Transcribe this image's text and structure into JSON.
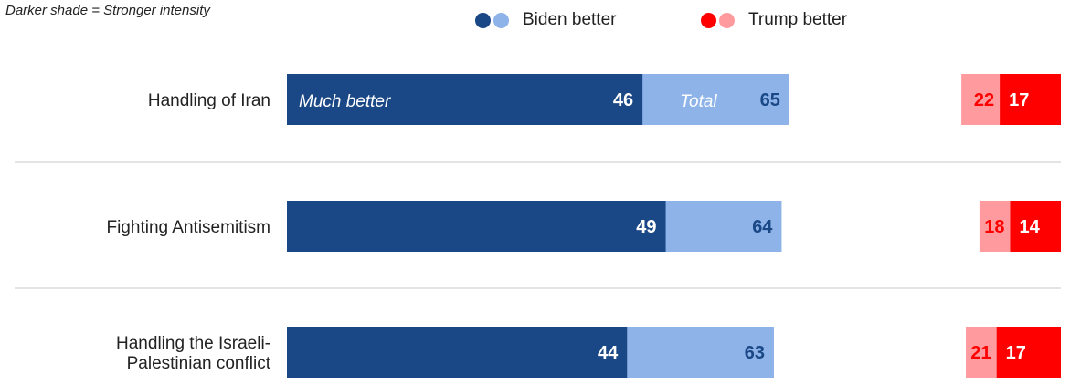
{
  "note": "Darker shade = Stronger intensity",
  "legend": {
    "biden_label": "Biden better",
    "trump_label": "Trump better"
  },
  "colors": {
    "biden_strong": "#1a4785",
    "biden_total": "#8db3e8",
    "trump_strong": "#ff0000",
    "trump_total": "#ff9a9e",
    "separator": "#c8c8c8"
  },
  "chart_data": {
    "type": "bar",
    "categories": [
      "Handling of Iran",
      "Fighting Antisemitism",
      "Handling the Israeli-Palestinian conflict"
    ],
    "category_lines": [
      [
        "Handling of Iran"
      ],
      [
        "Fighting Antisemitism"
      ],
      [
        "Handling the Israeli-",
        "Palestinian conflict"
      ]
    ],
    "series": [
      {
        "name": "Much better",
        "party": "Biden",
        "values": [
          46,
          49,
          44
        ]
      },
      {
        "name": "Total",
        "party": "Biden",
        "values": [
          65,
          64,
          63
        ]
      },
      {
        "party": "Trump",
        "kind": "total",
        "values": [
          22,
          18,
          21
        ]
      },
      {
        "party": "Trump",
        "kind": "much",
        "values": [
          17,
          14,
          17
        ]
      }
    ],
    "inline_labels": {
      "strong": "Much better",
      "total": "Total"
    },
    "legend_position": "top"
  }
}
